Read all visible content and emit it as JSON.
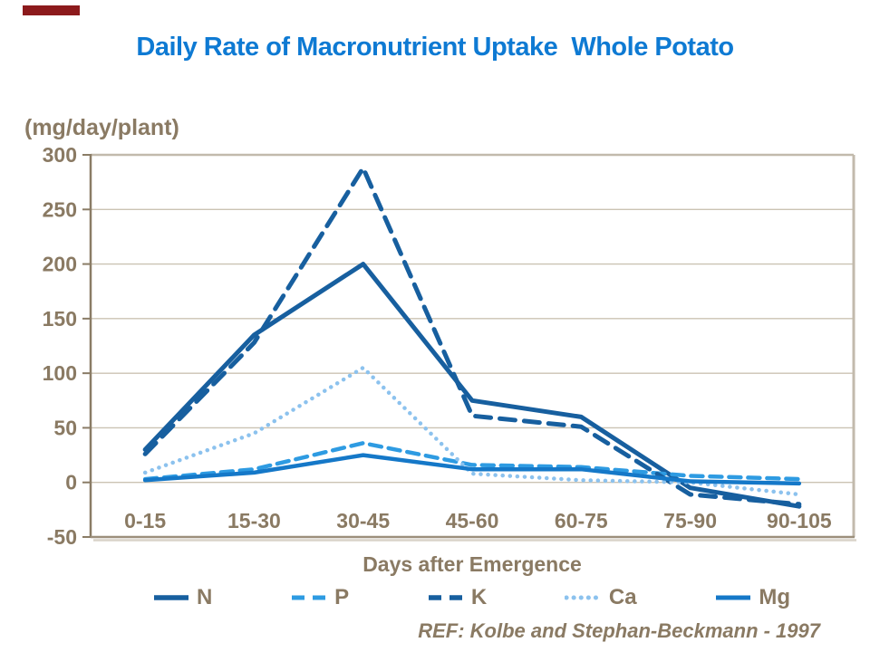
{
  "accent_bar": {
    "color": "#8C1A1C"
  },
  "title": "Daily Rate of Macronutrient Uptake  Whole Potato",
  "colors": {
    "title_blue": "#0E7AD3",
    "label_brown": "#8A7A63",
    "axis_dark": "#8A7C66",
    "frame_light": "#C2BAAC",
    "gridline": "#CBC3B3",
    "shadow": "#D9D3C9"
  },
  "chart_data": {
    "type": "line",
    "title": "Daily Rate of Macronutrient Uptake  Whole Potato",
    "y_unit_label": "(mg/day/plant)",
    "xlabel": "Days after Emergence",
    "categories": [
      "0-15",
      "15-30",
      "30-45",
      "45-60",
      "60-75",
      "75-90",
      "90-105"
    ],
    "ylim": [
      -50,
      300
    ],
    "yticks": [
      300,
      250,
      200,
      150,
      100,
      50,
      0,
      -50
    ],
    "grid": "horizontal",
    "legend_position": "bottom",
    "series": [
      {
        "name": "N",
        "style": "solid",
        "color": "#175F9F",
        "width": 5,
        "values": [
          30,
          135,
          200,
          75,
          60,
          -5,
          -22
        ]
      },
      {
        "name": "P",
        "style": "dashed",
        "color": "#2E9BE2",
        "width": 4.5,
        "values": [
          3,
          12,
          36,
          16,
          14,
          6,
          3
        ]
      },
      {
        "name": "K",
        "style": "dashed",
        "color": "#175F9F",
        "width": 5,
        "values": [
          26,
          128,
          288,
          61,
          51,
          -11,
          -20
        ]
      },
      {
        "name": "Ca",
        "style": "dotted",
        "color": "#8CC2EE",
        "width": 4.5,
        "values": [
          9,
          45,
          105,
          8,
          2,
          0,
          -11
        ]
      },
      {
        "name": "Mg",
        "style": "solid",
        "color": "#1578C8",
        "width": 4.5,
        "values": [
          2,
          9,
          25,
          12,
          12,
          1,
          -1
        ]
      }
    ]
  },
  "footer": {
    "reference": "REF: Kolbe and Stephan-Beckmann - 1997"
  }
}
